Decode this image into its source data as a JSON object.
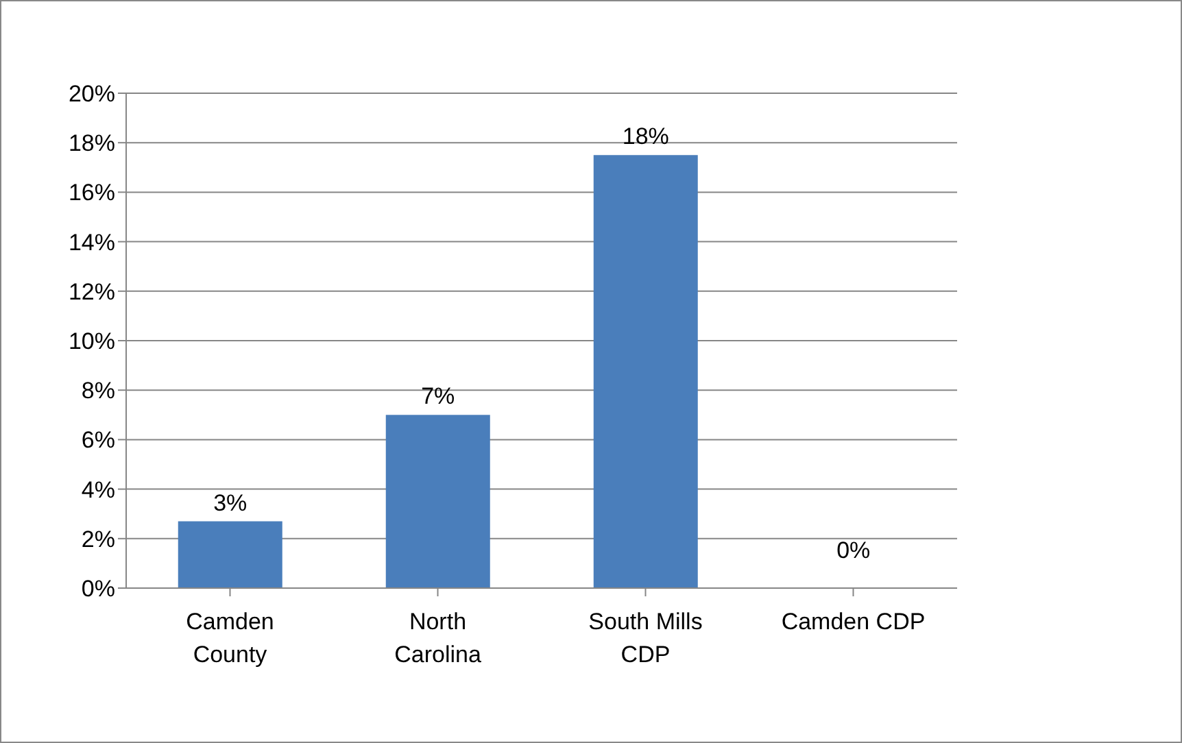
{
  "chart_data": {
    "type": "bar",
    "categories": [
      "Camden County",
      "North Carolina",
      "South Mills CDP",
      "Camden CDP"
    ],
    "values": [
      2.7,
      7,
      17.5,
      0
    ],
    "value_labels": [
      "3%",
      "7%",
      "18%",
      "0%"
    ],
    "color": "#4a7ebb",
    "ylim": [
      0,
      20
    ],
    "yticks": [
      {
        "value": 0,
        "label": "0%"
      },
      {
        "value": 2,
        "label": "2%"
      },
      {
        "value": 4,
        "label": "4%"
      },
      {
        "value": 6,
        "label": "6%"
      },
      {
        "value": 8,
        "label": "8%"
      },
      {
        "value": 10,
        "label": "10%"
      },
      {
        "value": 12,
        "label": "12%"
      },
      {
        "value": 14,
        "label": "14%"
      },
      {
        "value": 16,
        "label": "16%"
      },
      {
        "value": 18,
        "label": "18%"
      },
      {
        "value": 20,
        "label": "20%"
      }
    ],
    "grid": "y",
    "legend": false
  }
}
